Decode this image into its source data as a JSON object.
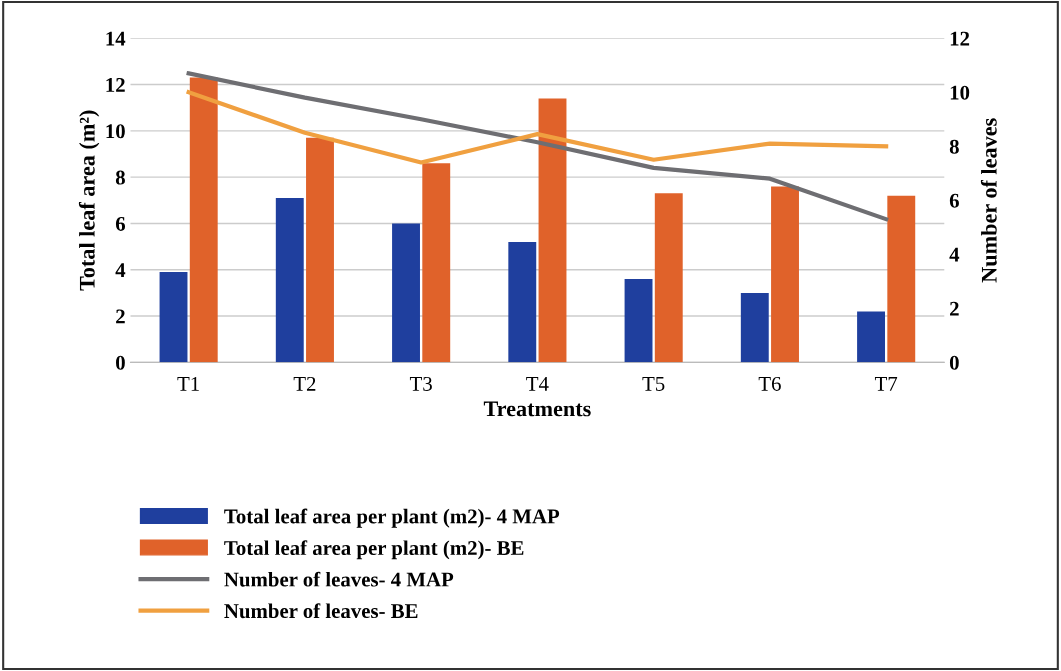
{
  "chart_data": {
    "type": "bar",
    "xlabel": "Treatments",
    "ylabel": "Total leaf area (m²)",
    "y2label": "Number of leaves",
    "categories": [
      "T1",
      "T2",
      "T3",
      "T4",
      "T5",
      "T6",
      "T7"
    ],
    "series": [
      {
        "name": "Total leaf area per plant (m2)- 4 MAP",
        "color": "#1f3f9e",
        "values": [
          3.9,
          7.1,
          6.0,
          5.2,
          3.6,
          3.0,
          2.2
        ]
      },
      {
        "name": "Total leaf area per plant (m2)- BE",
        "color": "#e0622a",
        "values": [
          12.3,
          9.7,
          8.6,
          11.4,
          7.3,
          7.6,
          7.2
        ]
      },
      {
        "name": "Number of leaves- 4 MAP",
        "type": "line",
        "axis": "y2",
        "color": "#6e6e72",
        "values": [
          10.7,
          9.8,
          9.0,
          8.15,
          7.2,
          6.8,
          5.3
        ]
      },
      {
        "name": "Number of leaves- BE",
        "type": "line",
        "axis": "y2",
        "color": "#f0a040",
        "values": [
          10.0,
          8.5,
          7.4,
          8.45,
          7.5,
          8.1,
          8.0
        ]
      }
    ],
    "ylim": [
      0,
      14
    ],
    "yticks": [
      0,
      2,
      4,
      6,
      8,
      10,
      12,
      14
    ],
    "y2lim": [
      0,
      12
    ],
    "y2ticks": [
      0,
      2,
      4,
      6,
      8,
      10,
      12
    ],
    "grid": "y",
    "legend": "bottom",
    "marker": "none",
    "line_style": "solid"
  }
}
